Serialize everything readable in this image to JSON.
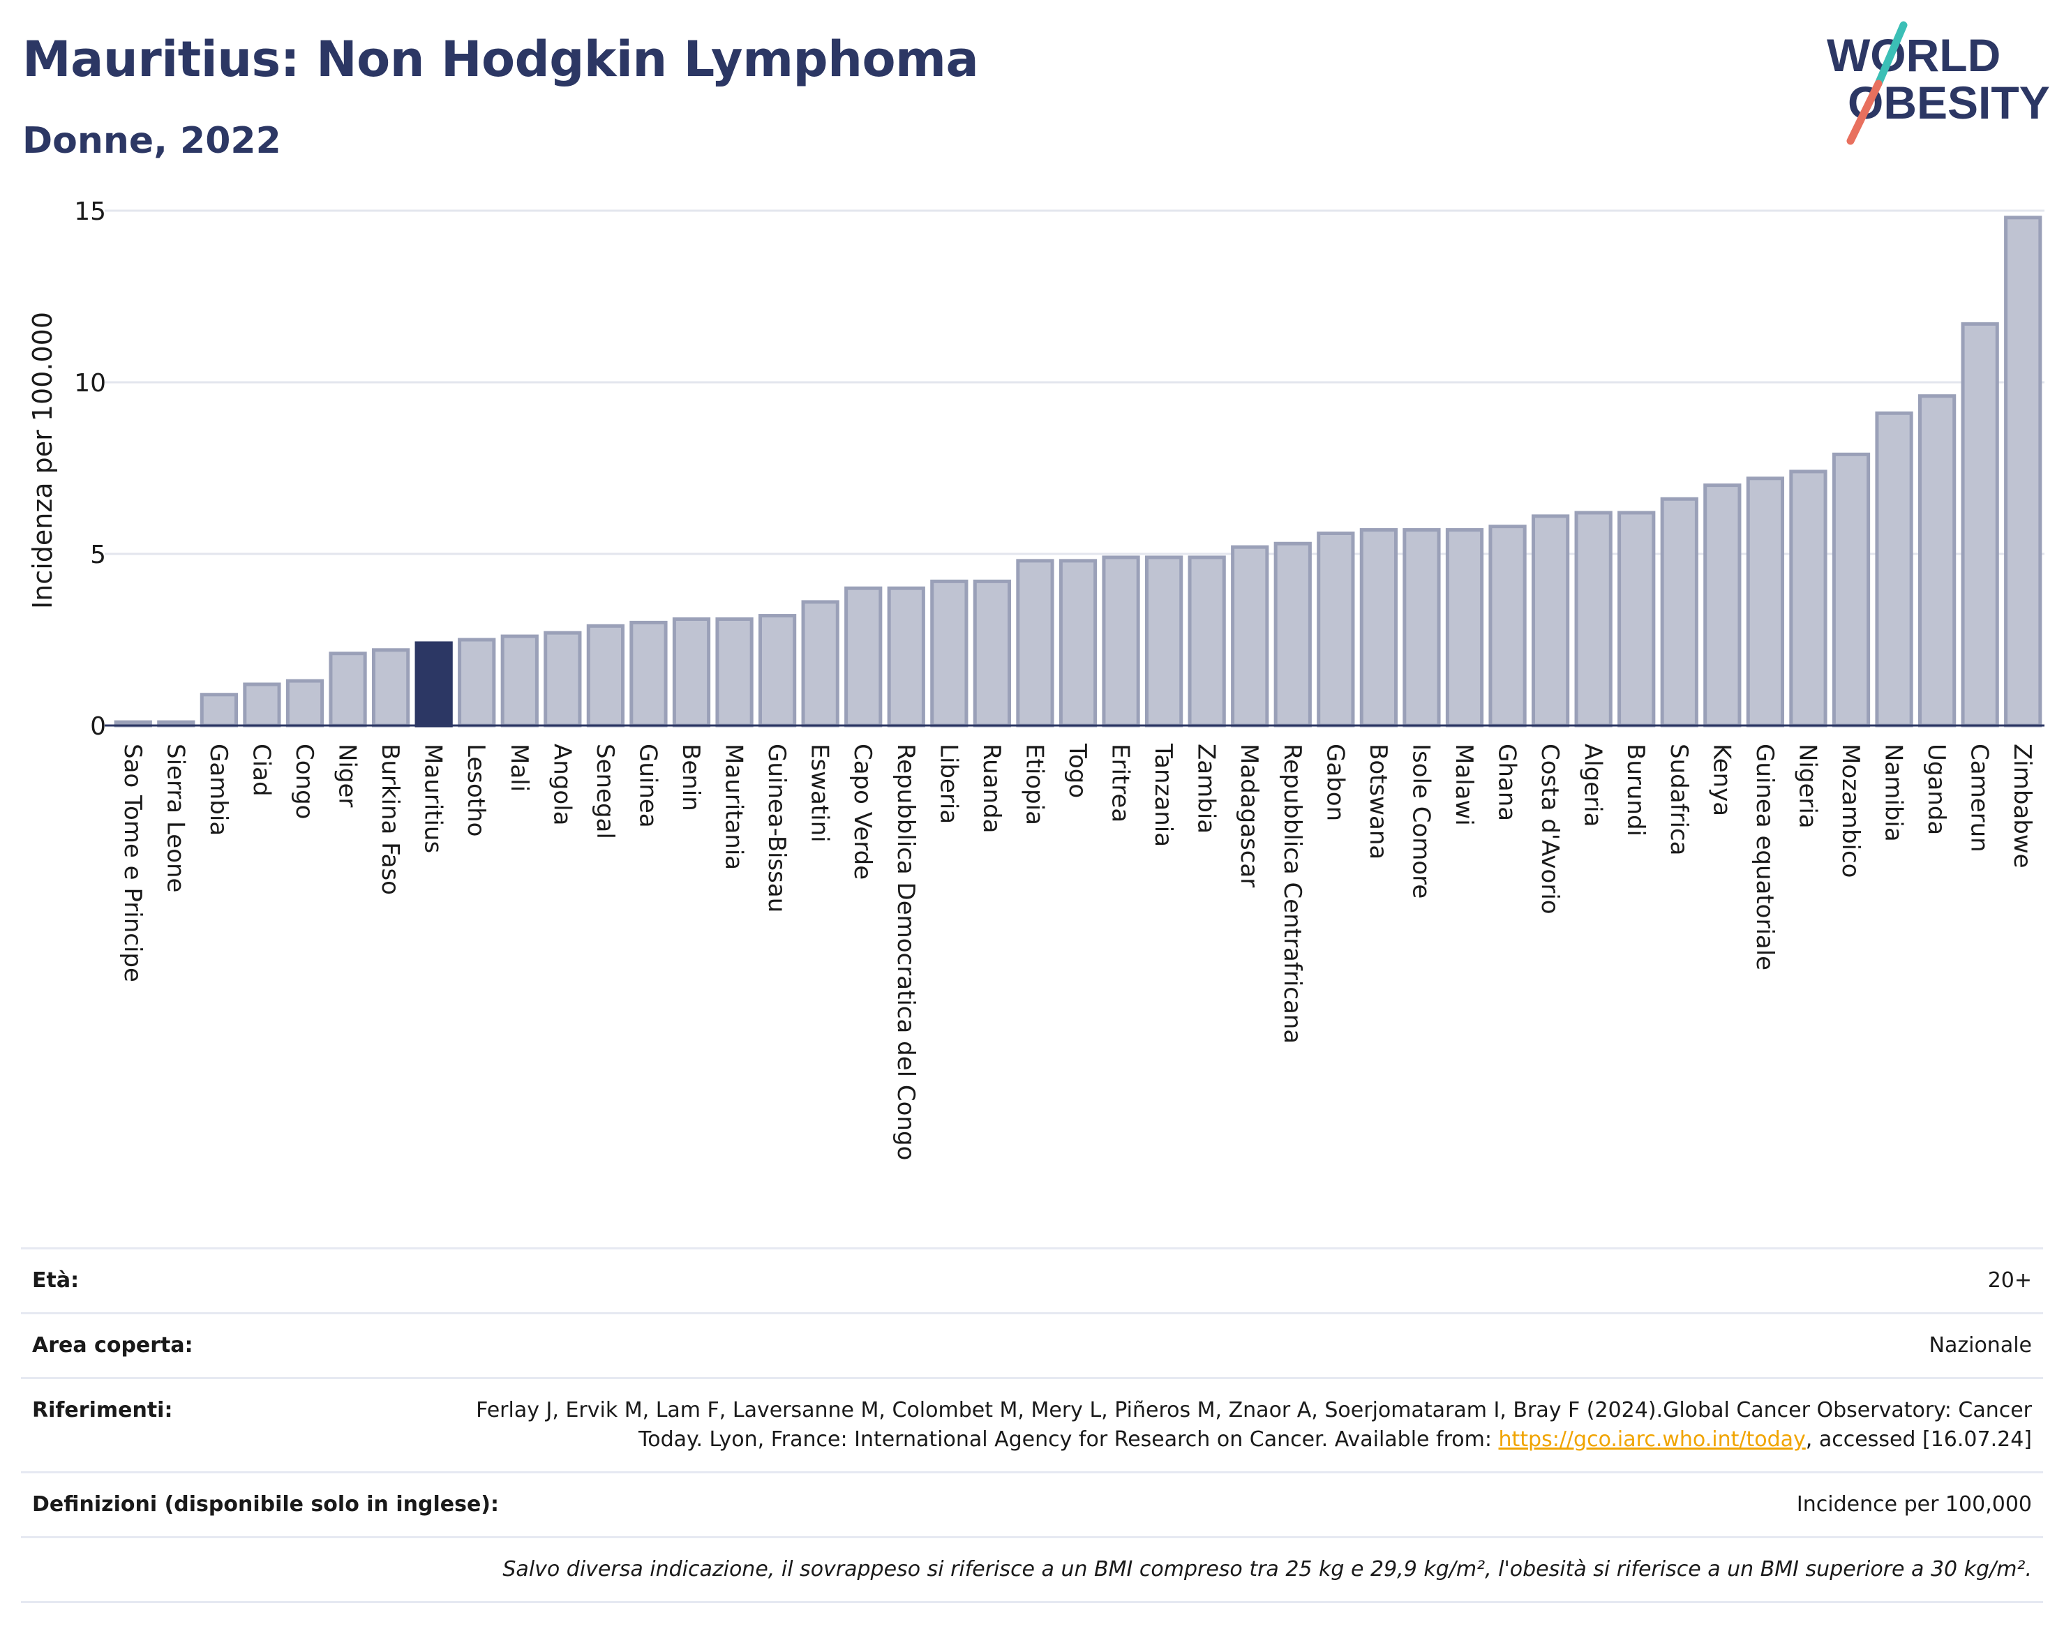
{
  "header": {
    "title": "Mauritius: Non Hodgkin Lymphoma",
    "subtitle": "Donne, 2022"
  },
  "logo": {
    "line1": "WORLD",
    "line2": "OBESITY",
    "colors": {
      "text": "#2c3764",
      "slash_top": "#3bbfb6",
      "slash_bottom": "#e8705e"
    }
  },
  "chart_data": {
    "type": "bar",
    "ylabel": "Incidenza per 100.000",
    "xlabel": "",
    "ylim": [
      0,
      15
    ],
    "yticks": [
      0,
      5,
      10,
      15
    ],
    "grid": true,
    "highlight": "Mauritius",
    "colors": {
      "bar": "#bfc3d2",
      "bar_border": "#9aa0b8",
      "highlight": "#2c3764"
    },
    "categories": [
      "Sao Tome e Principe",
      "Sierra Leone",
      "Gambia",
      "Ciad",
      "Congo",
      "Niger",
      "Burkina Faso",
      "Mauritius",
      "Lesotho",
      "Mali",
      "Angola",
      "Senegal",
      "Guinea",
      "Benin",
      "Mauritania",
      "Guinea-Bissau",
      "Eswatini",
      "Capo Verde",
      "Repubblica Democratica del Congo",
      "Liberia",
      "Ruanda",
      "Etiopia",
      "Togo",
      "Eritrea",
      "Tanzania",
      "Zambia",
      "Madagascar",
      "Repubblica Centrafricana",
      "Gabon",
      "Botswana",
      "Isole Comore",
      "Malawi",
      "Ghana",
      "Costa d'Avorio",
      "Algeria",
      "Burundi",
      "Sudafrica",
      "Kenya",
      "Guinea equatoriale",
      "Nigeria",
      "Mozambico",
      "Namibia",
      "Uganda",
      "Camerun",
      "Zimbabwe"
    ],
    "values": [
      0.1,
      0.1,
      0.9,
      1.2,
      1.3,
      2.1,
      2.2,
      2.4,
      2.5,
      2.6,
      2.7,
      2.9,
      3.0,
      3.1,
      3.1,
      3.2,
      3.6,
      4.0,
      4.0,
      4.2,
      4.2,
      4.8,
      4.8,
      4.9,
      4.9,
      4.9,
      5.2,
      5.3,
      5.6,
      5.7,
      5.7,
      5.7,
      5.8,
      6.1,
      6.2,
      6.2,
      6.6,
      7.0,
      7.2,
      7.4,
      7.9,
      9.1,
      9.6,
      11.7,
      14.8
    ]
  },
  "info": {
    "age_label": "Età:",
    "age_value": "20+",
    "area_label": "Area coperta:",
    "area_value": "Nazionale",
    "ref_label": "Riferimenti:",
    "ref_text": "Ferlay J, Ervik M, Lam F, Laversanne M, Colombet M, Mery L, Piñeros M, Znaor A, Soerjomataram I, Bray F (2024).Global Cancer Observatory: Cancer Today. Lyon, France: International Agency for Research on Cancer. Available from: ",
    "ref_link": "https://gco.iarc.who.int/today",
    "ref_tail": ", accessed [16.07.24]",
    "def_label": "Definizioni (disponibile solo in inglese):",
    "def_value": "Incidence per 100,000",
    "note": "Salvo diversa indicazione, il sovrappeso si riferisce a un BMI compreso tra 25 kg e 29,9 kg/m², l'obesità si riferisce a un BMI superiore a 30 kg/m²."
  }
}
